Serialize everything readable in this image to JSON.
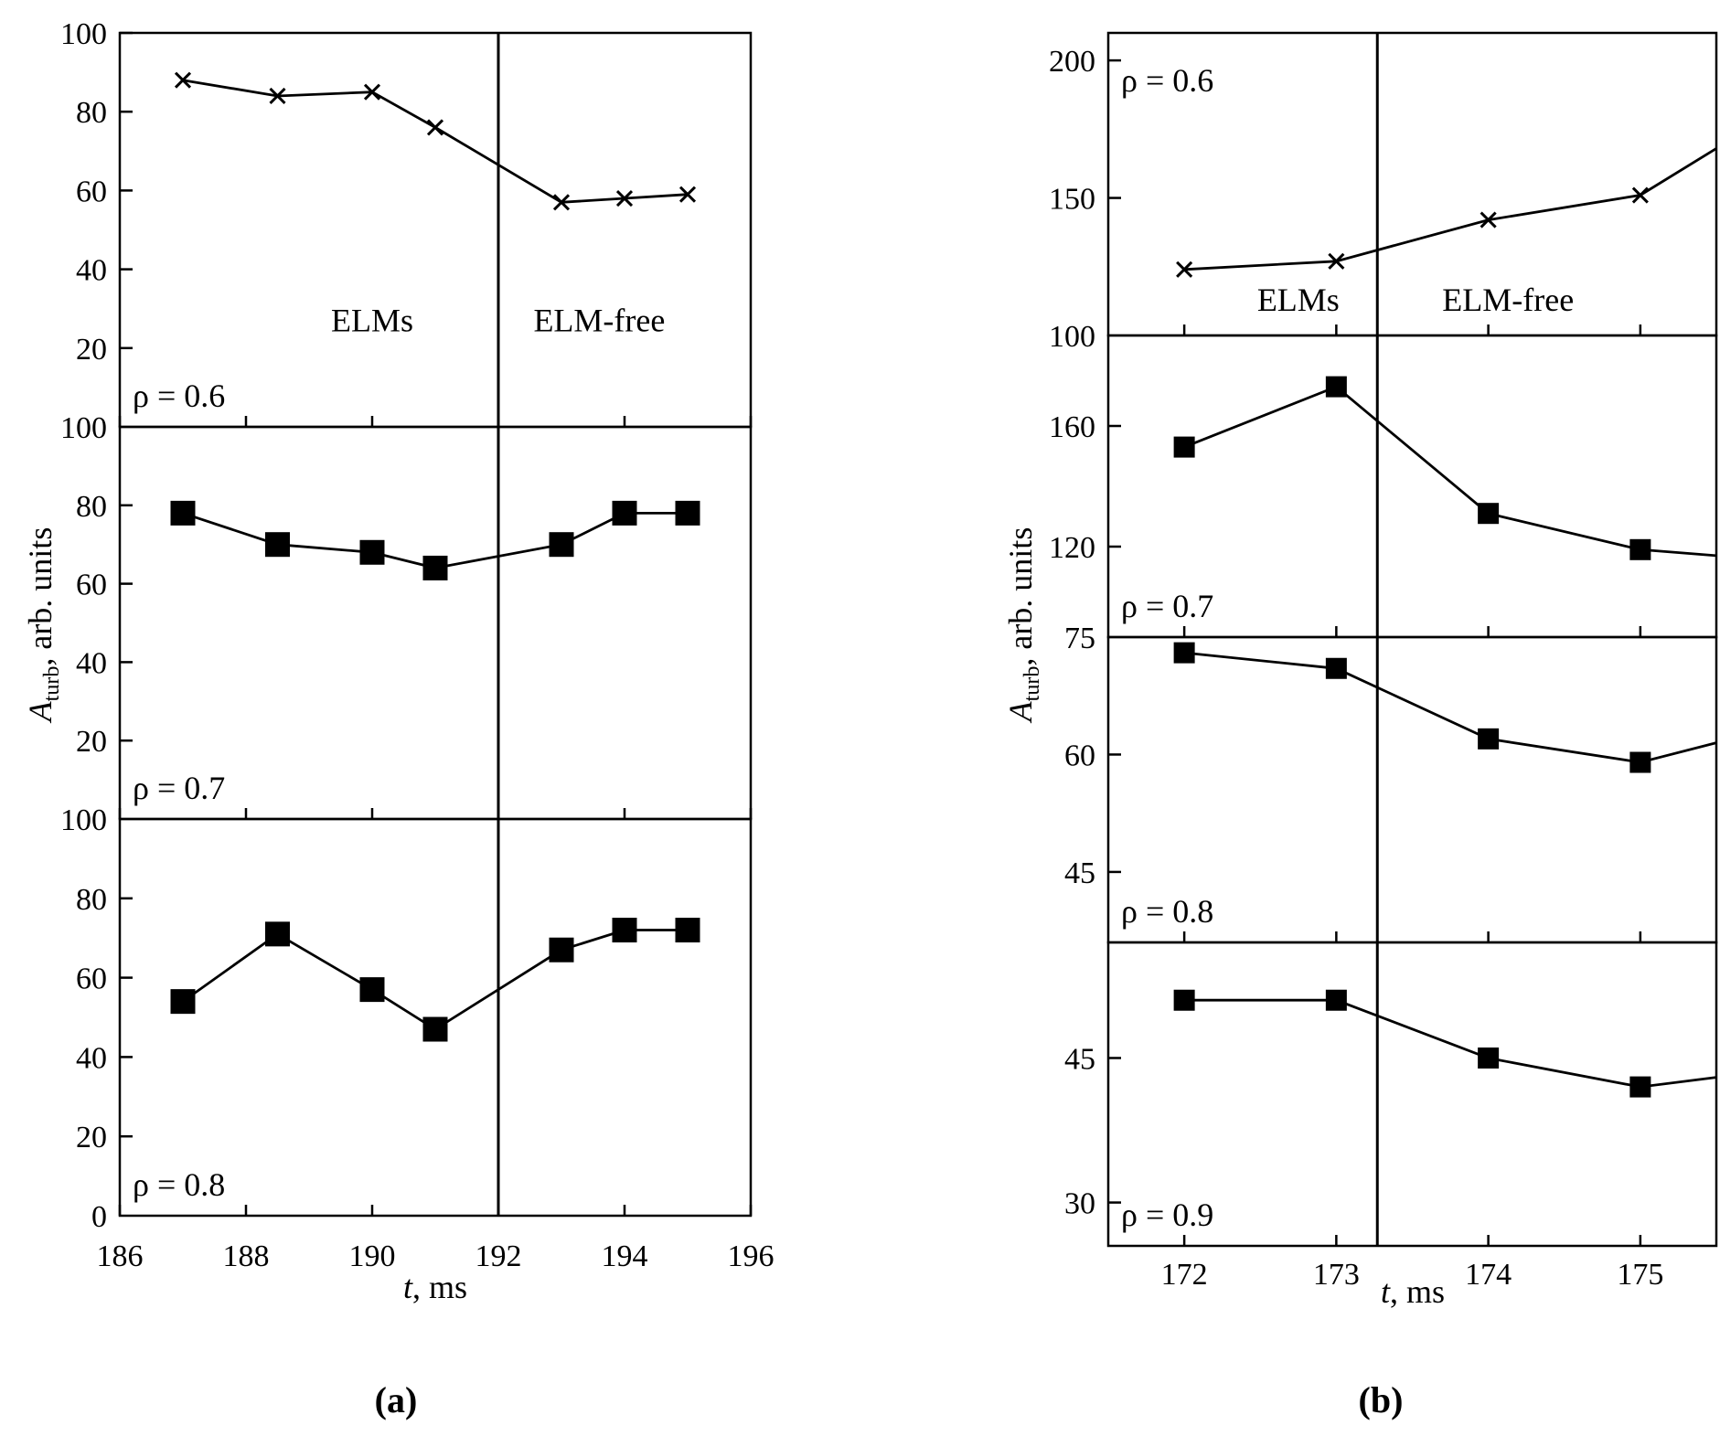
{
  "chart_data": [
    {
      "type": "line",
      "panel_label": "(a)",
      "xlabel_var": "t",
      "xlabel_unit": ", ms",
      "ylabel_var": "A",
      "ylabel_sub": "turb",
      "ylabel_unit": ", arb. units",
      "xlim": [
        186,
        196
      ],
      "xticks": [
        186,
        188,
        190,
        192,
        194,
        196
      ],
      "divider_x": 192,
      "region_labels": [
        {
          "text": "ELMs",
          "x": 190,
          "y": 27
        },
        {
          "text": "ELM-free",
          "x": 193.6,
          "y": 27
        }
      ],
      "subplots": [
        {
          "label": "ρ = 0.6",
          "ylim": [
            0,
            100
          ],
          "yticks": [
            20,
            40,
            60,
            80,
            100
          ],
          "bottom_tick_label": "100",
          "marker": "x",
          "x": [
            187,
            188.5,
            190,
            191,
            193,
            194,
            195
          ],
          "y": [
            88,
            84,
            85,
            76,
            57,
            58,
            59
          ]
        },
        {
          "label": "ρ = 0.7",
          "ylim": [
            0,
            100
          ],
          "yticks": [
            20,
            40,
            60,
            80
          ],
          "bottom_tick_label": "100",
          "marker": "square",
          "x": [
            187,
            188.5,
            190,
            191,
            193,
            194,
            195
          ],
          "y": [
            78,
            70,
            68,
            64,
            70,
            78,
            78
          ]
        },
        {
          "label": "ρ = 0.8",
          "ylim": [
            0,
            100
          ],
          "yticks": [
            20,
            40,
            60,
            80
          ],
          "bottom_tick_label": "0",
          "marker": "square",
          "x": [
            187,
            188.5,
            190,
            191,
            193,
            194,
            195
          ],
          "y": [
            54,
            71,
            57,
            47,
            67,
            72,
            72
          ]
        }
      ]
    },
    {
      "type": "line",
      "panel_label": "(b)",
      "xlabel_var": "t",
      "xlabel_unit": ", ms",
      "ylabel_var": "A",
      "ylabel_sub": "turb",
      "ylabel_unit": ", arb. units",
      "xlim": [
        171.5,
        175.5
      ],
      "xticks": [
        172,
        173,
        174,
        175
      ],
      "xtick_labels": [
        "172",
        "173",
        "174",
        "175"
      ],
      "divider_x": 173.27,
      "region_labels": [
        {
          "text": "ELMs",
          "x": 172.75,
          "y": 113
        },
        {
          "text": "ELM-free",
          "x": 174.13,
          "y": 113
        }
      ],
      "subplots": [
        {
          "label": "ρ = 0.6",
          "ylim": [
            100,
            210
          ],
          "yticks": [
            150,
            200
          ],
          "bottom_tick_label": "100",
          "marker": "x",
          "x": [
            172,
            173,
            174,
            175,
            175.5
          ],
          "y": [
            124,
            127,
            142,
            151,
            168
          ]
        },
        {
          "label": "ρ = 0.7",
          "ylim": [
            90,
            190
          ],
          "yticks": [
            120,
            160
          ],
          "bottom_tick_label": "75",
          "marker": "square",
          "x": [
            172,
            173,
            174,
            175,
            175.5
          ],
          "y": [
            153,
            173,
            131,
            119,
            117
          ]
        },
        {
          "label": "ρ = 0.8",
          "ylim": [
            36,
            75
          ],
          "yticks": [
            45,
            60
          ],
          "bottom_tick_label": "",
          "marker": "square",
          "x": [
            172,
            173,
            174,
            175,
            175.5
          ],
          "y": [
            73,
            71,
            62,
            59,
            61.5
          ]
        },
        {
          "label": "ρ = 0.9",
          "ylim": [
            25.5,
            57
          ],
          "yticks": [
            30,
            45
          ],
          "bottom_tick_label": "",
          "marker": "square",
          "x": [
            172,
            173,
            174,
            175,
            175.5
          ],
          "y": [
            51,
            51,
            45,
            42,
            43
          ]
        }
      ]
    }
  ]
}
